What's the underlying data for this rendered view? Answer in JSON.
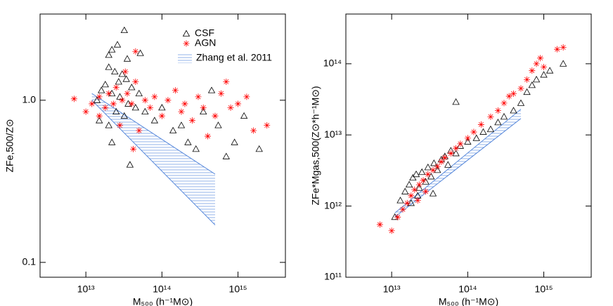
{
  "chart_data": [
    {
      "type": "scatter",
      "log": true,
      "xlabel": "M₅₀₀ (h⁻¹M⊙)",
      "ylabel": "ZFe,500/Z⊙",
      "xlim": [
        2500000000000.0,
        4200000000000000.0
      ],
      "ylim": [
        0.081,
        3.4
      ],
      "xticks": [
        {
          "value": 10000000000000.0,
          "label": "10¹³"
        },
        {
          "value": 100000000000000.0,
          "label": "10¹⁴"
        },
        {
          "value": 1000000000000000.0,
          "label": "10¹⁵"
        }
      ],
      "yticks": [
        0.1,
        {
          "value": 1,
          "label": "1.0"
        }
      ],
      "series": [
        {
          "name": "CSF",
          "color": "#000000",
          "marker": "triangle",
          "x": [
            32000000000000.0,
            22000000000000.0,
            20000000000000.0,
            26000000000000.0,
            35000000000000.0,
            52000000000000.0,
            20000000000000.0,
            24000000000000.0,
            30000000000000.0,
            27000000000000.0,
            34000000000000.0,
            18000000000000.0,
            16000000000000.0,
            22000000000000.0,
            28000000000000.0,
            40000000000000.0,
            14000000000000.0,
            36000000000000.0,
            50000000000000.0,
            15000000000000.0,
            20000000000000.0,
            25000000000000.0,
            32000000000000.0,
            45000000000000.0,
            60000000000000.0,
            22000000000000.0,
            38000000000000.0,
            80000000000000.0,
            100000000000000.0,
            140000000000000.0,
            180000000000000.0,
            220000000000000.0,
            280000000000000.0,
            350000000000000.0,
            450000000000000.0,
            550000000000000.0,
            700000000000000.0,
            900000000000000.0,
            1200000000000000.0,
            1900000000000000.0
          ],
          "y": [
            2.7,
            2.05,
            1.9,
            2.2,
            1.8,
            1.95,
            1.6,
            1.5,
            1.45,
            1.3,
            1.35,
            1.25,
            1.15,
            1.1,
            1.05,
            1.2,
            1.0,
            0.95,
            1.1,
            0.75,
            0.7,
            0.85,
            0.8,
            0.9,
            0.85,
            0.55,
            0.4,
            0.75,
            0.9,
            0.65,
            0.7,
            0.55,
            0.5,
            0.85,
            1.15,
            0.7,
            0.45,
            0.55,
            0.8,
            0.5
          ]
        },
        {
          "name": "AGN",
          "color": "#ff0000",
          "marker": "asterisk",
          "x": [
            7000000000000.0,
            10000000000000.0,
            12000000000000.0,
            15000000000000.0,
            18000000000000.0,
            20000000000000.0,
            23000000000000.0,
            25000000000000.0,
            30000000000000.0,
            35000000000000.0,
            40000000000000.0,
            45000000000000.0,
            50000000000000.0,
            60000000000000.0,
            45000000000000.0,
            70000000000000.0,
            80000000000000.0,
            100000000000000.0,
            120000000000000.0,
            150000000000000.0,
            180000000000000.0,
            200000000000000.0,
            250000000000000.0,
            300000000000000.0,
            350000000000000.0,
            400000000000000.0,
            500000000000000.0,
            600000000000000.0,
            700000000000000.0,
            800000000000000.0,
            1000000000000000.0,
            1300000000000000.0,
            1600000000000000.0,
            2400000000000000.0,
            15000000000000.0,
            28000000000000.0,
            33000000000000.0,
            42000000000000.0
          ],
          "y": [
            1.02,
            0.85,
            0.95,
            1.05,
            0.9,
            1.1,
            0.95,
            1.2,
            1.0,
            1.1,
            0.95,
            1.3,
            0.65,
            1.0,
            2.0,
            0.9,
            1.05,
            0.8,
            1.0,
            1.15,
            0.85,
            0.95,
            0.75,
            1.05,
            0.9,
            0.6,
            0.8,
            1.1,
            1.3,
            0.9,
            0.95,
            1.05,
            0.65,
            0.7,
            0.8,
            0.7,
            1.5,
            0.5
          ]
        }
      ],
      "band": {
        "name": "Zhang et al. 2011",
        "color": "#4a7fd8",
        "x": [
          12000000000000.0,
          500000000000000.0
        ],
        "lower": [
          1.0,
          0.17
        ],
        "upper": [
          1.1,
          0.35
        ]
      }
    },
    {
      "type": "scatter",
      "log": true,
      "xlabel": "M₅₀₀ (h⁻¹M⊙)",
      "ylabel": "ZFe*Mgas,500(Z⊙*h⁻¹M⊙)",
      "xlim": [
        2500000000000.0,
        4200000000000000.0
      ],
      "ylim": [
        100000000000.0,
        500000000000000.0
      ],
      "xticks": [
        {
          "value": 10000000000000.0,
          "label": "10¹³"
        },
        {
          "value": 100000000000000.0,
          "label": "10¹⁴"
        },
        {
          "value": 1000000000000000.0,
          "label": "10¹⁵"
        }
      ],
      "yticks": [
        {
          "value": 100000000000.0,
          "label": "10¹¹"
        },
        {
          "value": 1000000000000.0,
          "label": "10¹²"
        },
        {
          "value": 10000000000000.0,
          "label": "10¹³"
        },
        {
          "value": 100000000000000.0,
          "label": "10¹⁴"
        }
      ],
      "series": [
        {
          "color": "#000000",
          "marker": "triangle",
          "x": [
            11000000000000.0,
            13000000000000.0,
            15000000000000.0,
            17000000000000.0,
            19000000000000.0,
            21000000000000.0,
            23000000000000.0,
            25000000000000.0,
            28000000000000.0,
            30000000000000.0,
            33000000000000.0,
            36000000000000.0,
            40000000000000.0,
            45000000000000.0,
            50000000000000.0,
            55000000000000.0,
            60000000000000.0,
            70000000000000.0,
            70000000000000.0,
            80000000000000.0,
            100000000000000.0,
            130000000000000.0,
            160000000000000.0,
            200000000000000.0,
            250000000000000.0,
            300000000000000.0,
            400000000000000.0,
            500000000000000.0,
            600000000000000.0,
            700000000000000.0,
            800000000000000.0,
            1000000000000000.0,
            1200000000000000.0,
            1800000000000000.0,
            22000000000000.0,
            18000000000000.0,
            35000000000000.0
          ],
          "y": [
            700000000000.0,
            1200000000000.0,
            1600000000000.0,
            2000000000000.0,
            2500000000000.0,
            2800000000000.0,
            1800000000000.0,
            3000000000000.0,
            2200000000000.0,
            3500000000000.0,
            2600000000000.0,
            4000000000000.0,
            3200000000000.0,
            4500000000000.0,
            5000000000000.0,
            3800000000000.0,
            6000000000000.0,
            5500000000000.0,
            29000000000000.0,
            7000000000000.0,
            8000000000000.0,
            9000000000000.0,
            11000000000000.0,
            12000000000000.0,
            15000000000000.0,
            18000000000000.0,
            22000000000000.0,
            28000000000000.0,
            40000000000000.0,
            50000000000000.0,
            60000000000000.0,
            70000000000000.0,
            80000000000000.0,
            100000000000000.0,
            1400000000000.0,
            1100000000000.0,
            1500000000000.0
          ]
        },
        {
          "color": "#ff0000",
          "marker": "asterisk",
          "x": [
            7000000000000.0,
            10000000000000.0,
            12000000000000.0,
            14000000000000.0,
            16000000000000.0,
            18000000000000.0,
            20000000000000.0,
            23000000000000.0,
            26000000000000.0,
            30000000000000.0,
            35000000000000.0,
            40000000000000.0,
            45000000000000.0,
            50000000000000.0,
            60000000000000.0,
            70000000000000.0,
            80000000000000.0,
            100000000000000.0,
            120000000000000.0,
            150000000000000.0,
            200000000000000.0,
            250000000000000.0,
            300000000000000.0,
            350000000000000.0,
            400000000000000.0,
            500000000000000.0,
            600000000000000.0,
            700000000000000.0,
            800000000000000.0,
            900000000000000.0,
            1000000000000000.0,
            1500000000000000.0,
            1800000000000000.0,
            28000000000000.0,
            22000000000000.0
          ],
          "y": [
            550000000000.0,
            450000000000.0,
            700000000000.0,
            900000000000.0,
            1100000000000.0,
            1400000000000.0,
            1700000000000.0,
            2000000000000.0,
            2300000000000.0,
            2800000000000.0,
            3200000000000.0,
            3600000000000.0,
            4200000000000.0,
            4800000000000.0,
            5500000000000.0,
            6500000000000.0,
            7500000000000.0,
            9000000000000.0,
            11000000000000.0,
            14000000000000.0,
            18000000000000.0,
            22000000000000.0,
            28000000000000.0,
            35000000000000.0,
            38000000000000.0,
            45000000000000.0,
            60000000000000.0,
            80000000000000.0,
            100000000000000.0,
            120000000000000.0,
            90000000000000.0,
            160000000000000.0,
            170000000000000.0,
            1600000000000.0,
            1200000000000.0
          ]
        }
      ],
      "band": {
        "color": "#4a7fd8",
        "x": [
          11000000000000.0,
          500000000000000.0
        ],
        "lower": [
          700000000000.0,
          17000000000000.0
        ],
        "upper": [
          800000000000.0,
          23000000000000.0
        ]
      }
    }
  ]
}
